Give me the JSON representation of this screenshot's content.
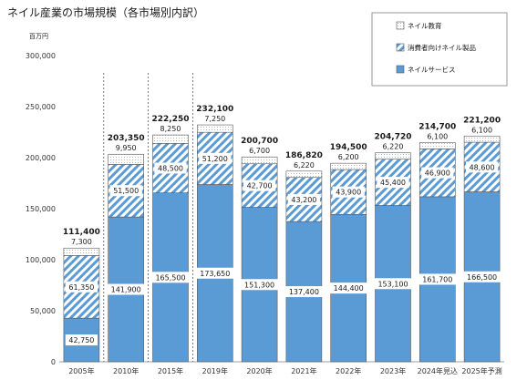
{
  "chart_data": {
    "type": "bar",
    "stacked": true,
    "title": "ネイル産業の市場規模（各市場別内訳）",
    "y_unit": "百万円",
    "ylim": [
      0,
      300000
    ],
    "yticks": [
      "0",
      "50,000",
      "100,000",
      "150,000",
      "200,000",
      "250,000",
      "300,000"
    ],
    "ytick_values": [
      0,
      50000,
      100000,
      150000,
      200000,
      250000,
      300000
    ],
    "categories": [
      "2005年",
      "2010年",
      "2015年",
      "2019年",
      "2020年",
      "2021年",
      "2022年",
      "2023年",
      "2024年見込",
      "2025年予測"
    ],
    "series": [
      {
        "name": "ネイルサービス",
        "color": "#5b9bd5",
        "values": [
          42750,
          141900,
          165500,
          173650,
          151300,
          137400,
          144400,
          153100,
          161700,
          166500
        ],
        "labels": [
          "42,750",
          "141,900",
          "165,500",
          "173,650",
          "151,300",
          "137,400",
          "144,400",
          "153,100",
          "161,700",
          "166,500"
        ]
      },
      {
        "name": "消費者向けネイル製品",
        "color": "#5b9bd5",
        "values": [
          61350,
          51500,
          48500,
          51200,
          42700,
          43200,
          43900,
          45400,
          46900,
          48600
        ],
        "labels": [
          "61,350",
          "51,500",
          "48,500",
          "51,200",
          "42,700",
          "43,200",
          "43,900",
          "45,400",
          "46,900",
          "48,600"
        ]
      },
      {
        "name": "ネイル教育",
        "color": "#ffffff",
        "values": [
          7300,
          9950,
          8250,
          7250,
          6700,
          6220,
          6200,
          6220,
          6100,
          6100
        ],
        "labels": [
          "7,300",
          "9,950",
          "8,250",
          "7,250",
          "6,700",
          "6,220",
          "6,200",
          "6,220",
          "6,100",
          "6,100"
        ]
      }
    ],
    "totals": [
      111400,
      203350,
      222250,
      232100,
      200700,
      186820,
      194500,
      204720,
      214700,
      221200
    ],
    "total_labels": [
      "111,400",
      "203,350",
      "222,250",
      "232,100",
      "200,700",
      "186,820",
      "194,500",
      "204,720",
      "214,700",
      "221,200"
    ],
    "legend_order": [
      "ネイル教育",
      "消費者向けネイル製品",
      "ネイルサービス"
    ],
    "legend_position": "top-right",
    "grid": false,
    "dashed_dividers_after": [
      "2005年",
      "2010年",
      "2015年"
    ]
  }
}
